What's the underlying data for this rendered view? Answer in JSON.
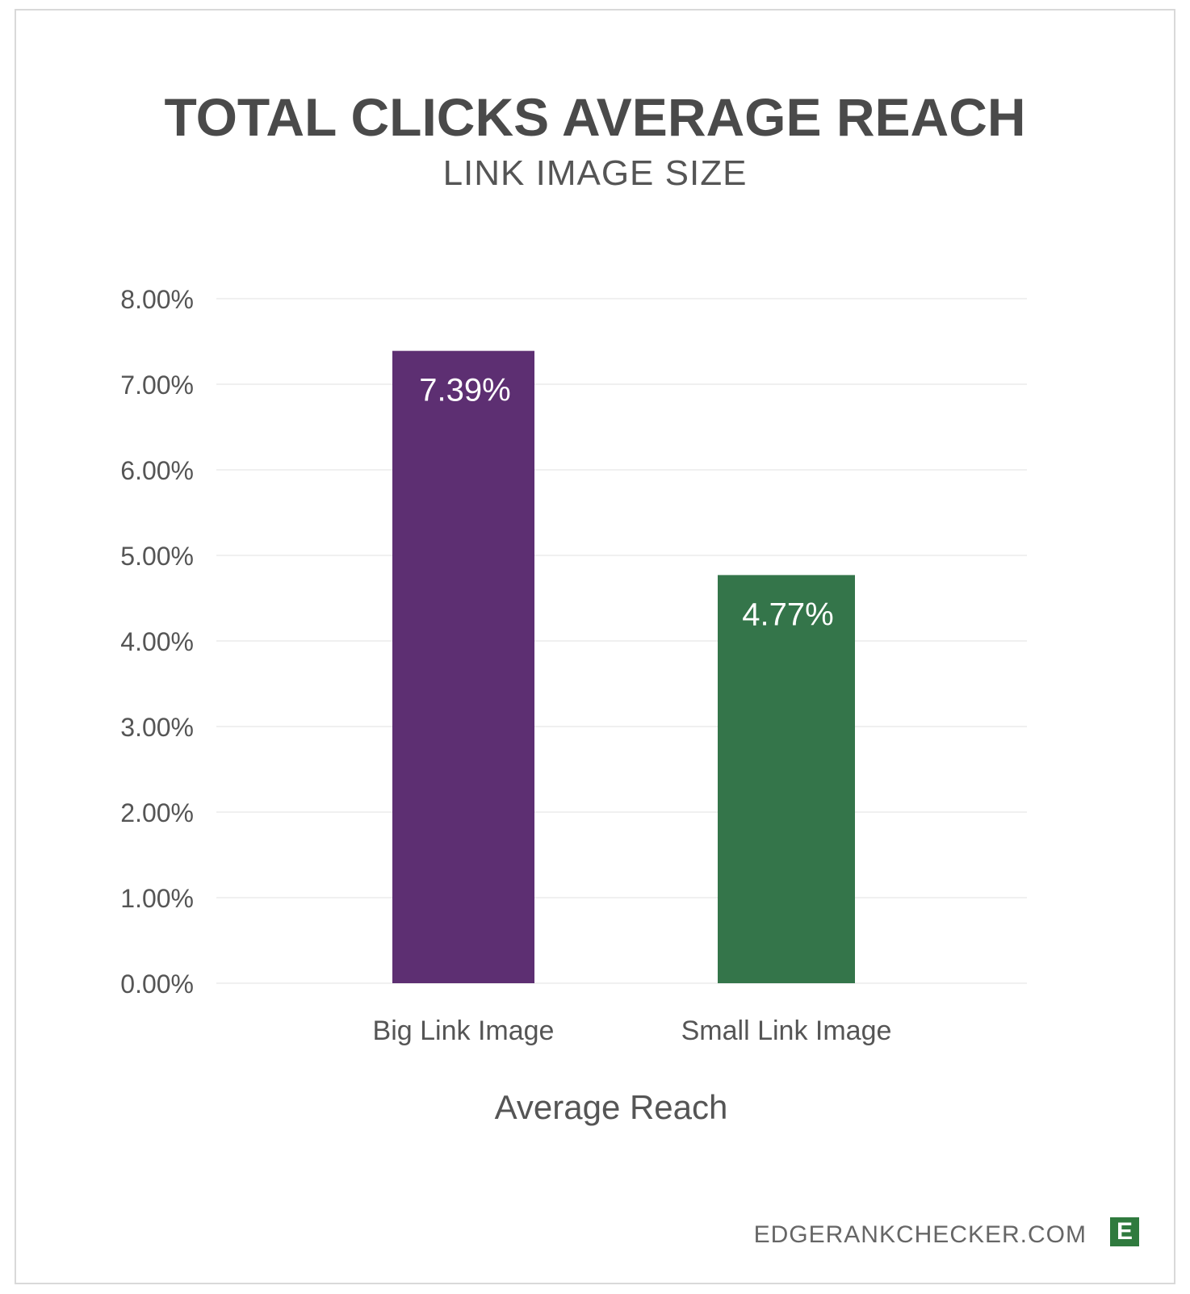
{
  "chart_data": {
    "type": "bar",
    "title": "TOTAL CLICKS AVERAGE REACH",
    "subtitle": "LINK IMAGE SIZE",
    "xlabel": "Average Reach",
    "ylabel": "",
    "categories": [
      "Big Link Image",
      "Small Link Image"
    ],
    "values": [
      7.39,
      4.77
    ],
    "value_labels": [
      "7.39%",
      "4.77%"
    ],
    "colors": [
      "#5d2f72",
      "#34754a"
    ],
    "ylim": [
      0,
      8
    ],
    "yticks": [
      0,
      1,
      2,
      3,
      4,
      5,
      6,
      7,
      8
    ],
    "ytick_labels": [
      "0.00%",
      "1.00%",
      "2.00%",
      "3.00%",
      "4.00%",
      "5.00%",
      "6.00%",
      "7.00%",
      "8.00%"
    ],
    "grid": true,
    "legend": "none"
  },
  "footer": {
    "site": "EDGERANKCHECKER.COM",
    "logo_letter": "E",
    "logo_color": "#2f7a3e"
  }
}
